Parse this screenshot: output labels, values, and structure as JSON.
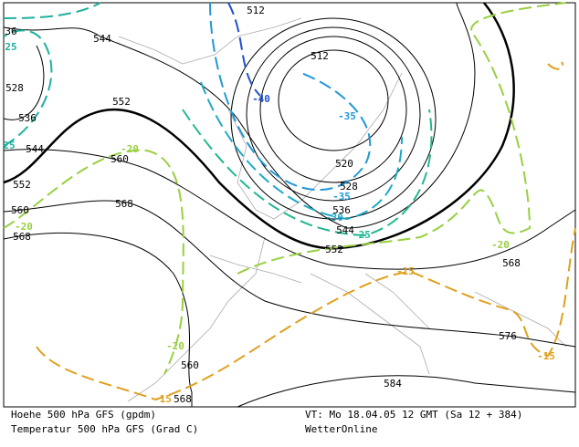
{
  "map": {
    "height_labels": [
      36,
      512,
      544,
      512,
      528,
      536,
      552,
      544,
      560,
      520,
      528,
      552,
      536,
      560,
      568,
      544,
      568,
      552,
      568,
      576,
      560,
      584,
      568
    ],
    "temperature_labels": [
      {
        "value": 25,
        "color": "#20b0a0"
      },
      {
        "value": -40,
        "color": "#2050d0"
      },
      {
        "value": -35,
        "color": "#2098d8"
      },
      {
        "value": 25,
        "color": "#20b0a0"
      },
      {
        "value": -20,
        "color": "#98d040"
      },
      {
        "value": -35,
        "color": "#2098d8"
      },
      {
        "value": -30,
        "color": "#20a8c8"
      },
      {
        "value": -25,
        "color": "#20b890"
      },
      {
        "value": -20,
        "color": "#98d040"
      },
      {
        "value": -20,
        "color": "#98d040"
      },
      {
        "value": -15,
        "color": "#e0a020"
      },
      {
        "value": -20,
        "color": "#98d040"
      },
      {
        "value": -15,
        "color": "#e0a020"
      },
      {
        "value": -15,
        "color": "#e0a020"
      }
    ]
  },
  "footer": {
    "left": [
      "Hoehe 500 hPa GFS (gpdm)",
      "Temperatur 500 hPa GFS (Grad C)"
    ],
    "right": [
      "VT: Mo 18.04.05 12 GMT (Sa 12 + 384)",
      "WetterOnline"
    ]
  }
}
